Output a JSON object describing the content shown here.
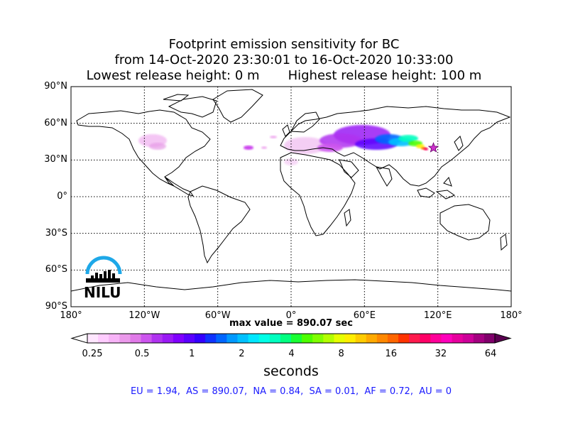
{
  "title": {
    "line1": "Footprint emission sensitivity for BC",
    "line2": "from 14-Oct-2020 23:30:01 to 16-Oct-2020 10:33:00",
    "line3": "Lowest release height: 0 m       Highest release height: 100 m"
  },
  "map": {
    "lat_labels": [
      "90°N",
      "60°N",
      "30°N",
      "0°",
      "30°S",
      "60°S",
      "90°S"
    ],
    "lon_labels": [
      "180°",
      "120°W",
      "60°W",
      "0°",
      "60°E",
      "120°E",
      "180°"
    ],
    "lat_range": [
      -90,
      90
    ],
    "lon_range": [
      -180,
      180
    ],
    "grid": "dotted",
    "coastline_color": "#000000",
    "marker": {
      "type": "star",
      "lon": 116.4,
      "lat": 39.9,
      "color": "#cc33cc"
    },
    "logo_text": "NILU",
    "logo_color": "#1ea8e8"
  },
  "max_value_label": "max value = 890.07 sec",
  "colorbar": {
    "label": "seconds",
    "tick_labels": [
      "0.25",
      "0.5",
      "1",
      "2",
      "4",
      "8",
      "16",
      "32",
      "64"
    ],
    "colors": [
      "#ffe6ff",
      "#ffccff",
      "#f7b3f7",
      "#eb99eb",
      "#e07ae8",
      "#cc55ee",
      "#b033f0",
      "#9a1af5",
      "#8000ff",
      "#5a00ff",
      "#3300ff",
      "#0f33ff",
      "#0066ff",
      "#0099ff",
      "#00c0ff",
      "#00e6ff",
      "#00ffe6",
      "#00ffbf",
      "#00ff80",
      "#19ff33",
      "#4dff00",
      "#80ff00",
      "#b3ff00",
      "#e6ff00",
      "#ffee00",
      "#ffcc00",
      "#ffaa00",
      "#ff8800",
      "#ff6600",
      "#ff3300",
      "#ff1a4d",
      "#ff0066",
      "#ff0099",
      "#ff00bb",
      "#e6009e",
      "#cc0099",
      "#a30080",
      "#80006b"
    ]
  },
  "summary": "EU = 1.94,  AS = 890.07,  NA = 0.84,  SA = 0.01,  AF = 0.72,  AU = 0"
}
